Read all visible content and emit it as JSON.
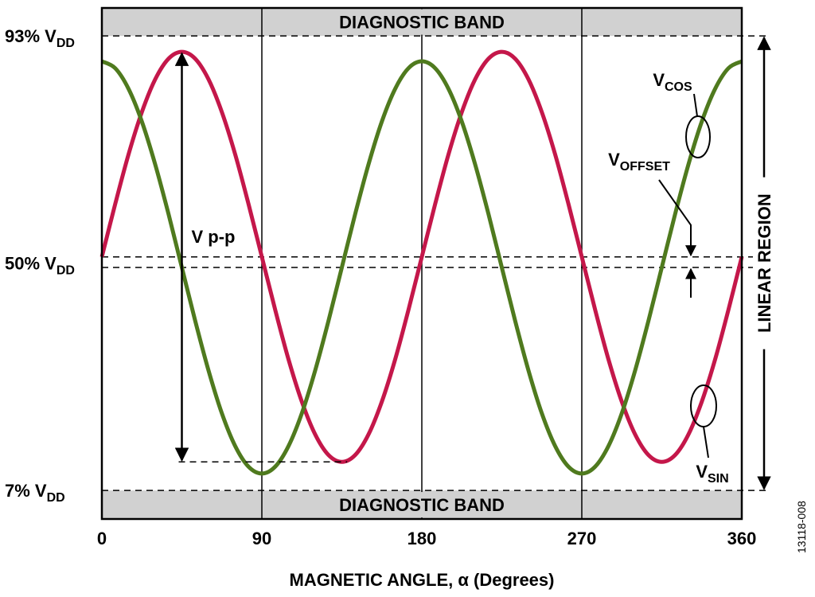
{
  "chart_data": {
    "type": "line",
    "x_label": "MAGNETIC ANGLE, α (Degrees)",
    "figure_id": "13118-008",
    "xlim": [
      0,
      360
    ],
    "xticks": [
      0,
      90,
      180,
      270,
      360
    ],
    "ylim": [
      1.6,
      98.3
    ],
    "yticks": [
      {
        "value": 93,
        "label": "93% V",
        "subscript": "DD"
      },
      {
        "value": 50,
        "label": "50% V",
        "subscript": "DD"
      },
      {
        "value": 7,
        "label": "7% V",
        "subscript": "DD"
      }
    ],
    "x": [
      0,
      7.5,
      15,
      22.5,
      30,
      37.5,
      45,
      52.5,
      60,
      67.5,
      75,
      82.5,
      90,
      97.5,
      105,
      112.5,
      120,
      127.5,
      135,
      142.5,
      150,
      157.5,
      165,
      172.5,
      180,
      187.5,
      195,
      202.5,
      210,
      217.5,
      225,
      232.5,
      240,
      247.5,
      255,
      262.5,
      270,
      277.5,
      285,
      292.5,
      300,
      307.5,
      315,
      322.5,
      330,
      337.5,
      345,
      352.5,
      360
    ],
    "series": [
      {
        "name": "V",
        "subscript": "SIN",
        "color": "#c4174a",
        "values": [
          51.2,
          61.2,
          70.6,
          78.6,
          84.8,
          88.7,
          90.0,
          88.7,
          84.8,
          78.6,
          70.6,
          61.2,
          51.2,
          41.2,
          31.8,
          23.8,
          17.6,
          13.7,
          12.4,
          13.7,
          17.6,
          23.8,
          31.8,
          41.2,
          51.2,
          61.2,
          70.6,
          78.6,
          84.8,
          88.7,
          90.0,
          88.7,
          84.8,
          78.6,
          70.6,
          61.2,
          51.2,
          41.2,
          31.8,
          23.8,
          17.6,
          13.7,
          12.4,
          13.7,
          17.6,
          23.8,
          31.8,
          41.2,
          51.2
        ]
      },
      {
        "name": "V",
        "subscript": "COS",
        "color": "#4f7a1e",
        "values": [
          88.2,
          86.9,
          83.0,
          76.8,
          68.7,
          59.3,
          49.2,
          39.1,
          29.7,
          21.6,
          15.4,
          11.5,
          10.2,
          11.5,
          15.4,
          21.6,
          29.7,
          39.1,
          49.2,
          59.3,
          68.7,
          76.8,
          83.0,
          86.9,
          88.2,
          86.9,
          83.0,
          76.8,
          68.7,
          59.3,
          49.2,
          39.1,
          29.7,
          21.6,
          15.4,
          11.5,
          10.2,
          11.5,
          15.4,
          21.6,
          29.7,
          39.1,
          49.2,
          59.3,
          68.7,
          76.8,
          83.0,
          86.9,
          88.2
        ]
      }
    ],
    "bands": [
      {
        "label": "DIAGNOSTIC BAND",
        "range": [
          93,
          98.3
        ]
      },
      {
        "label": "DIAGNOSTIC BAND",
        "range": [
          1.6,
          7
        ]
      }
    ],
    "offset": {
      "text": "V",
      "subscript": "OFFSET",
      "lines": [
        51.2,
        49.2
      ]
    },
    "peak_to_peak": {
      "text": "V p-p",
      "x": 45,
      "top": 90.0,
      "bottom": 12.4,
      "dash_end_x": 138
    },
    "linear_region": {
      "text": "LINEAR REGION",
      "range": [
        93,
        7
      ]
    }
  }
}
